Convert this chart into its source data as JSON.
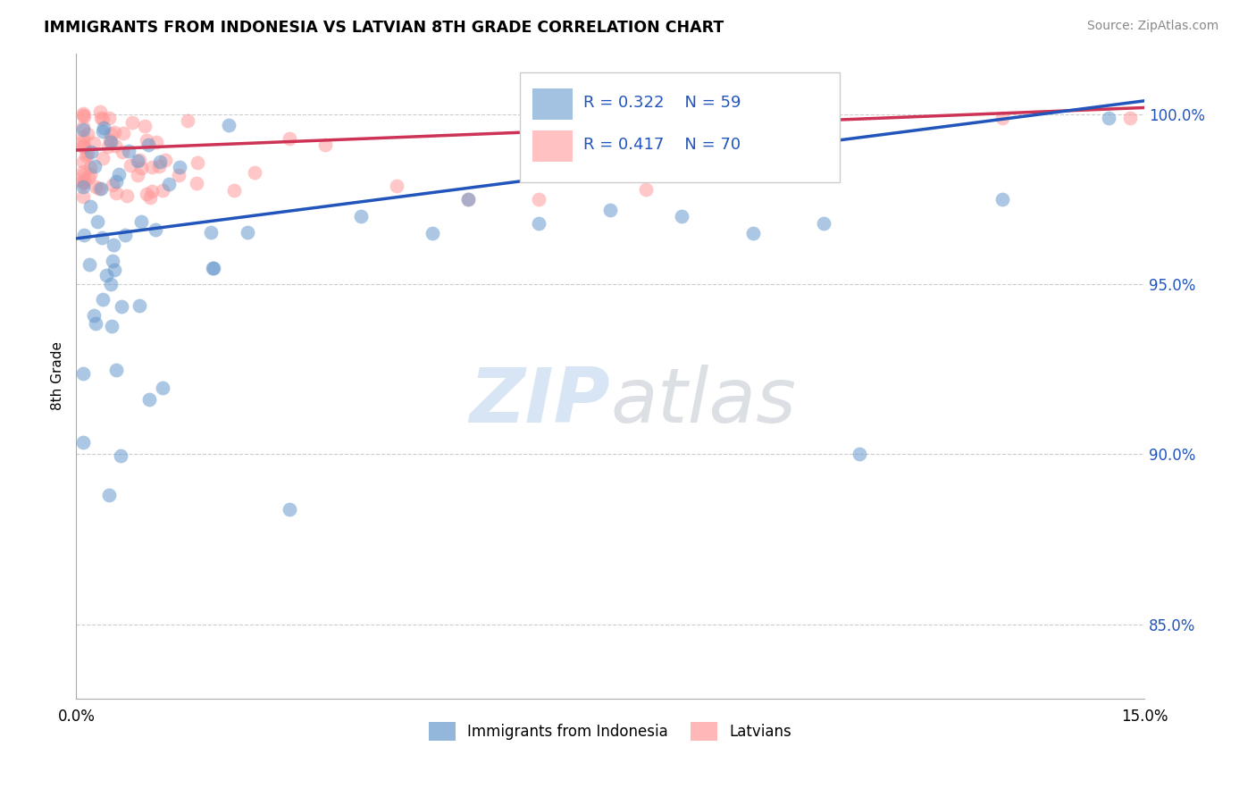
{
  "title": "IMMIGRANTS FROM INDONESIA VS LATVIAN 8TH GRADE CORRELATION CHART",
  "source": "Source: ZipAtlas.com",
  "ylabel": "8th Grade",
  "ylabel_ticks": [
    "85.0%",
    "90.0%",
    "95.0%",
    "100.0%"
  ],
  "ylabel_values": [
    0.85,
    0.9,
    0.95,
    1.0
  ],
  "ylim": [
    0.828,
    1.018
  ],
  "xlim": [
    0.0,
    0.15
  ],
  "legend_blue_r": "R = 0.322",
  "legend_blue_n": "N = 59",
  "legend_pink_r": "R = 0.417",
  "legend_pink_n": "N = 70",
  "legend_label_blue": "Immigrants from Indonesia",
  "legend_label_pink": "Latvians",
  "blue_color": "#6699CC",
  "pink_color": "#FF9999",
  "blue_line_color": "#2255BB",
  "pink_line_color": "#CC3355",
  "blue_trend": [
    0.9635,
    1.004
  ],
  "pink_trend": [
    0.9895,
    1.002
  ]
}
